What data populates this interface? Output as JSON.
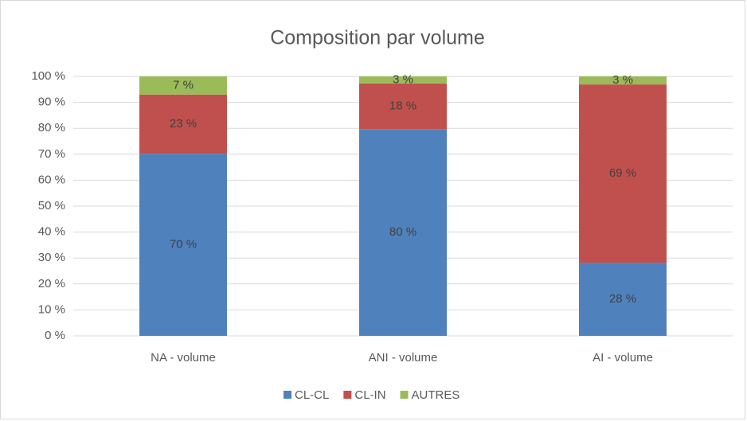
{
  "chart_data": {
    "type": "stacked_bar",
    "title": "Composition par volume",
    "categories": [
      "NA - volume",
      "ANI - volume",
      "AI - volume"
    ],
    "series": [
      {
        "name": "CL-CL",
        "color": "#4f81bd",
        "values": [
          70.2,
          79.7,
          28.2
        ],
        "value_labels": [
          "70 %",
          "80 %",
          "28 %"
        ]
      },
      {
        "name": "CL-IN",
        "color": "#c0504d",
        "values": [
          22.8,
          17.6,
          68.7
        ],
        "value_labels": [
          "23 %",
          "18 %",
          "69 %"
        ]
      },
      {
        "name": "AUTRES",
        "color": "#9bbb59",
        "values": [
          7.0,
          2.7,
          3.1
        ],
        "value_labels": [
          "7 %",
          "3 %",
          "3 %"
        ]
      }
    ],
    "ylim": [
      0,
      100
    ],
    "yticks": [
      {
        "value": 0,
        "label": "0 %"
      },
      {
        "value": 10,
        "label": "10 %"
      },
      {
        "value": 20,
        "label": "20 %"
      },
      {
        "value": 30,
        "label": "30 %"
      },
      {
        "value": 40,
        "label": "40 %"
      },
      {
        "value": 50,
        "label": "50 %"
      },
      {
        "value": 60,
        "label": "60 %"
      },
      {
        "value": 70,
        "label": "70 %"
      },
      {
        "value": 80,
        "label": "80 %"
      },
      {
        "value": 90,
        "label": "90 %"
      },
      {
        "value": 100,
        "label": "100 %"
      }
    ],
    "grid": true,
    "legend": "bottom"
  }
}
